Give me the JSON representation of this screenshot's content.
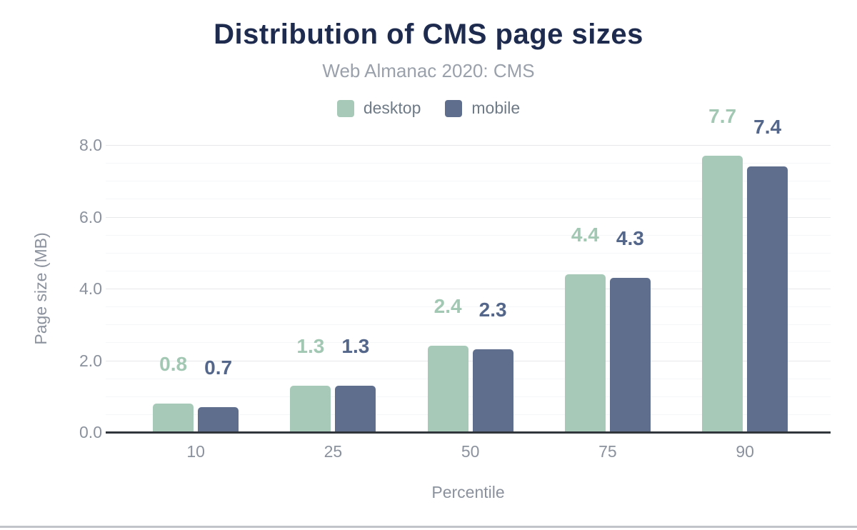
{
  "chart_data": {
    "type": "bar",
    "title": "Distribution of CMS page sizes",
    "subtitle": "Web Almanac 2020: CMS",
    "categories": [
      "10",
      "25",
      "50",
      "75",
      "90"
    ],
    "series": [
      {
        "name": "desktop",
        "color": "#a7c9b8",
        "label_color": "#a2c7b3",
        "values": [
          0.8,
          1.3,
          2.4,
          4.4,
          7.7
        ]
      },
      {
        "name": "mobile",
        "color": "#5e6e8c",
        "label_color": "#54678a",
        "values": [
          0.7,
          1.3,
          2.3,
          4.3,
          7.4
        ]
      }
    ],
    "xlabel": "Percentile",
    "ylabel": "Page size (MB)",
    "ylim": [
      0,
      8
    ],
    "y_tick_labels": [
      "0.0",
      "2.0",
      "4.0",
      "6.0",
      "8.0"
    ],
    "y_major_step": 2.0,
    "y_minor_step": 0.5,
    "grid": "horizontal-only",
    "legend_position": "top",
    "value_label_decimals": 1
  },
  "colors": {
    "title": "#1e2b4f",
    "subtitle": "#9aa1ab",
    "legend_text": "#6f7a87",
    "tick_text": "#8b929d",
    "axis_line": "#31363d",
    "grid_minor": "#f5f6f7",
    "grid_major": "#e7e8ea",
    "background": "#ffffff",
    "bottom_divider": "#c1c4c8"
  }
}
